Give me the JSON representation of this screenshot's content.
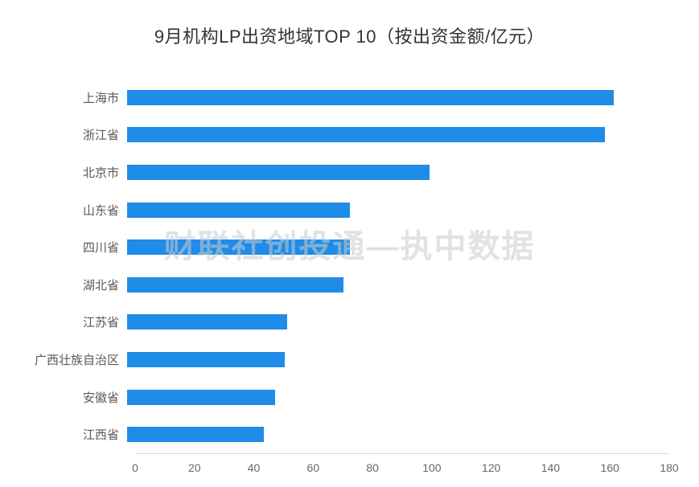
{
  "title": "9月机构LP出资地域TOP 10（按出资金额/亿元）",
  "watermark": "财联社创投通—执中数据",
  "colors": {
    "bar": "#1f8ce8",
    "axis_line": "#d9d9d9",
    "tick_text": "#666666",
    "label_text": "#595959",
    "title_text": "#333333",
    "watermark_text": "#cccccc"
  },
  "chart_data": {
    "type": "bar",
    "orientation": "horizontal",
    "title": "9月机构LP出资地域TOP 10（按出资金额/亿元）",
    "categories": [
      "上海市",
      "浙江省",
      "北京市",
      "山东省",
      "四川省",
      "湖北省",
      "江苏省",
      "广西壮族自治区",
      "安徽省",
      "江西省"
    ],
    "values": [
      164,
      161,
      102,
      75,
      75,
      73,
      54,
      53,
      50,
      46
    ],
    "xlabel": "",
    "ylabel": "",
    "xlim": [
      0,
      180
    ],
    "xticks": [
      0,
      20,
      40,
      60,
      80,
      100,
      120,
      140,
      160,
      180
    ],
    "grid": false,
    "legend": false,
    "unit": "亿元"
  }
}
